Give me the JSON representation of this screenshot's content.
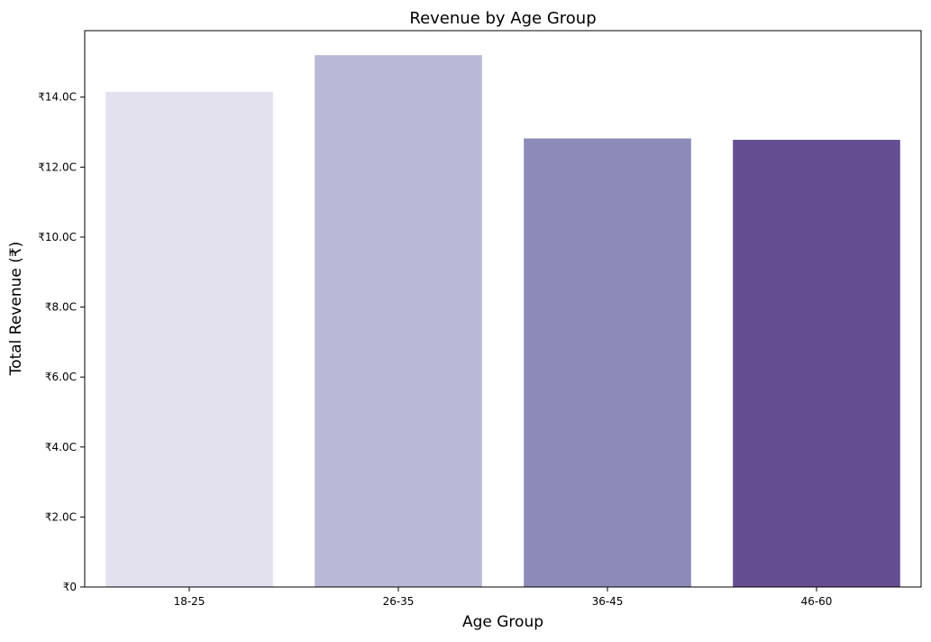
{
  "chart_data": {
    "type": "bar",
    "title": "Revenue by Age Group",
    "xlabel": "Age Group",
    "ylabel": "Total Revenue (₹)",
    "categories": [
      "18-25",
      "26-35",
      "36-45",
      "46-60"
    ],
    "values": [
      14.15,
      15.2,
      12.82,
      12.78
    ],
    "value_unit": "crore ₹",
    "ylim": [
      0,
      15.9
    ],
    "yticks": [
      0,
      2,
      4,
      6,
      8,
      10,
      12,
      14
    ],
    "ytick_labels": [
      "₹0",
      "₹2.0C",
      "₹4.0C",
      "₹6.0C",
      "₹8.0C",
      "₹10.0C",
      "₹12.0C",
      "₹14.0C"
    ],
    "bar_colors": [
      "#e3e1ee",
      "#b9b9d7",
      "#8c8bb8",
      "#644e91"
    ],
    "grid": false,
    "legend": "none"
  }
}
